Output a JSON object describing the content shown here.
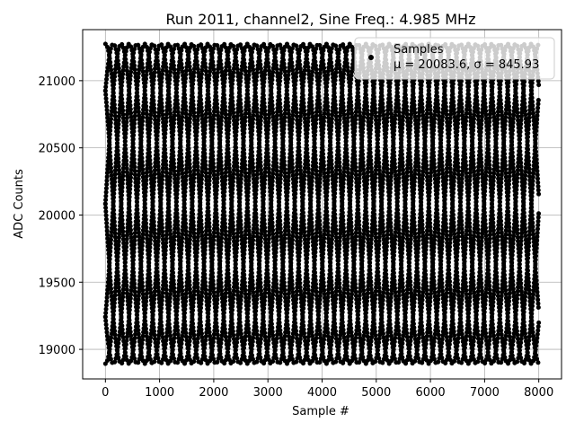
{
  "chart_data": {
    "type": "scatter",
    "title": "Run 2011, channel2, Sine Freq.: 4.985 MHz",
    "xlabel": "Sample #",
    "ylabel": "ADC Counts",
    "xlim": [
      -420,
      8420
    ],
    "ylim": [
      18780,
      21380
    ],
    "xticks": [
      0,
      1000,
      2000,
      3000,
      4000,
      5000,
      6000,
      7000,
      8000
    ],
    "xtick_labels": [
      "0",
      "1000",
      "2000",
      "3000",
      "4000",
      "5000",
      "6000",
      "7000",
      "8000"
    ],
    "yticks": [
      19000,
      19500,
      20000,
      20500,
      21000
    ],
    "ytick_labels": [
      "19000",
      "19500",
      "20000",
      "20500",
      "21000"
    ],
    "grid": true,
    "legend": {
      "position": "top-right",
      "entries": [
        {
          "name": "Samples",
          "stats": "μ = 20083.6, σ = 845.93"
        }
      ]
    },
    "series": [
      {
        "name": "Samples",
        "mean": 20083.6,
        "sigma": 845.93,
        "amplitude": 1190,
        "n_samples": 8000,
        "x_start": 0,
        "x_end": 8000,
        "phase_count": 8,
        "visual_period_samples": 1165,
        "color": "#000000"
      }
    ]
  }
}
